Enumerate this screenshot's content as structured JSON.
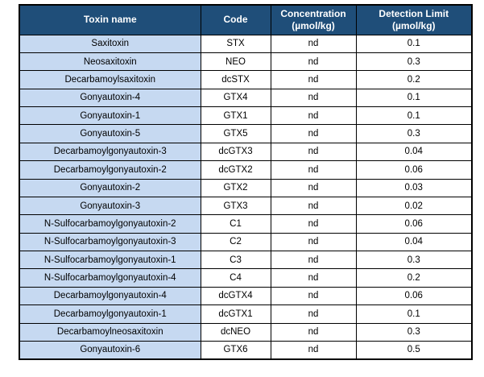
{
  "colors": {
    "header_bg": "#1F4E79",
    "header_text": "#FFFFFF",
    "name_column_bg": "#C6D9F1",
    "border": "#000000"
  },
  "table": {
    "headers": [
      {
        "label": "Toxin name",
        "unit": ""
      },
      {
        "label": "Code",
        "unit": ""
      },
      {
        "label": "Concentration",
        "unit": "(µmol/kg)"
      },
      {
        "label": "Detection Limit",
        "unit": "(µmol/kg)"
      }
    ],
    "rows": [
      {
        "name": "Saxitoxin",
        "code": "STX",
        "concentration": "nd",
        "detection_limit": "0.1"
      },
      {
        "name": "Neosaxitoxin",
        "code": "NEO",
        "concentration": "nd",
        "detection_limit": "0.3"
      },
      {
        "name": "Decarbamoylsaxitoxin",
        "code": "dcSTX",
        "concentration": "nd",
        "detection_limit": "0.2"
      },
      {
        "name": "Gonyautoxin-4",
        "code": "GTX4",
        "concentration": "nd",
        "detection_limit": "0.1"
      },
      {
        "name": "Gonyautoxin-1",
        "code": "GTX1",
        "concentration": "nd",
        "detection_limit": "0.1"
      },
      {
        "name": "Gonyautoxin-5",
        "code": "GTX5",
        "concentration": "nd",
        "detection_limit": "0.3"
      },
      {
        "name": "Decarbamoylgonyautoxin-3",
        "code": "dcGTX3",
        "concentration": "nd",
        "detection_limit": "0.04"
      },
      {
        "name": "Decarbamoylgonyautoxin-2",
        "code": "dcGTX2",
        "concentration": "nd",
        "detection_limit": "0.06"
      },
      {
        "name": "Gonyautoxin-2",
        "code": "GTX2",
        "concentration": "nd",
        "detection_limit": "0.03"
      },
      {
        "name": "Gonyautoxin-3",
        "code": "GTX3",
        "concentration": "nd",
        "detection_limit": "0.02"
      },
      {
        "name": "N-Sulfocarbamoylgonyautoxin-2",
        "code": "C1",
        "concentration": "nd",
        "detection_limit": "0.06"
      },
      {
        "name": "N-Sulfocarbamoylgonyautoxin-3",
        "code": "C2",
        "concentration": "nd",
        "detection_limit": "0.04"
      },
      {
        "name": "N-Sulfocarbamoylgonyautoxin-1",
        "code": "C3",
        "concentration": "nd",
        "detection_limit": "0.3"
      },
      {
        "name": "N-Sulfocarbamoylgonyautoxin-4",
        "code": "C4",
        "concentration": "nd",
        "detection_limit": "0.2"
      },
      {
        "name": "Decarbamoylgonyautoxin-4",
        "code": "dcGTX4",
        "concentration": "nd",
        "detection_limit": "0.06"
      },
      {
        "name": "Decarbamoylgonyautoxin-1",
        "code": "dcGTX1",
        "concentration": "nd",
        "detection_limit": "0.1"
      },
      {
        "name": "Decarbamoylneosaxitoxin",
        "code": "dcNEO",
        "concentration": "nd",
        "detection_limit": "0.3"
      },
      {
        "name": "Gonyautoxin-6",
        "code": "GTX6",
        "concentration": "nd",
        "detection_limit": "0.5"
      }
    ]
  }
}
